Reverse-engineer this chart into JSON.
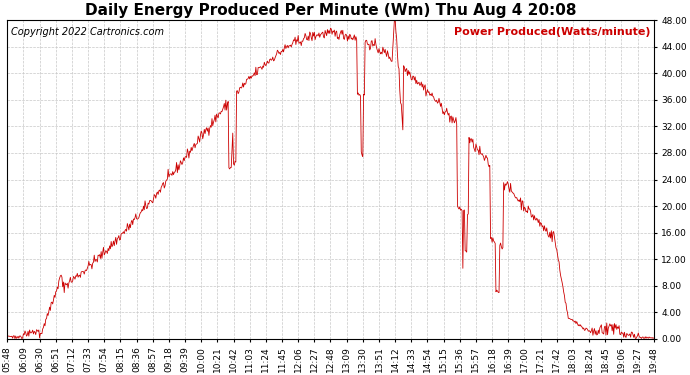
{
  "title": "Daily Energy Produced Per Minute (Wm) Thu Aug 4 20:08",
  "copyright_text": "Copyright 2022 Cartronics.com",
  "legend_label": "Power Produced(Watts/minute)",
  "background_color": "#ffffff",
  "plot_background": "#ffffff",
  "line_color": "#cc0000",
  "grid_color": "#c8c8c8",
  "title_color": "#000000",
  "copyright_color": "#000000",
  "legend_color": "#cc0000",
  "ymin": 0.0,
  "ymax": 48.0,
  "yticks": [
    0.0,
    4.0,
    8.0,
    12.0,
    16.0,
    20.0,
    24.0,
    28.0,
    32.0,
    36.0,
    40.0,
    44.0,
    48.0
  ],
  "x_tick_labels": [
    "05:48",
    "06:09",
    "06:30",
    "06:51",
    "07:12",
    "07:33",
    "07:54",
    "08:15",
    "08:36",
    "08:57",
    "09:18",
    "09:39",
    "10:00",
    "10:21",
    "10:42",
    "11:03",
    "11:24",
    "11:45",
    "12:06",
    "12:27",
    "12:48",
    "13:09",
    "13:30",
    "13:51",
    "14:12",
    "14:33",
    "14:54",
    "15:15",
    "15:36",
    "15:57",
    "16:18",
    "16:39",
    "17:00",
    "17:21",
    "17:42",
    "18:03",
    "18:24",
    "18:45",
    "19:06",
    "19:27",
    "19:48"
  ],
  "title_fontsize": 11,
  "axis_fontsize": 6.5,
  "copyright_fontsize": 7,
  "legend_fontsize": 8
}
